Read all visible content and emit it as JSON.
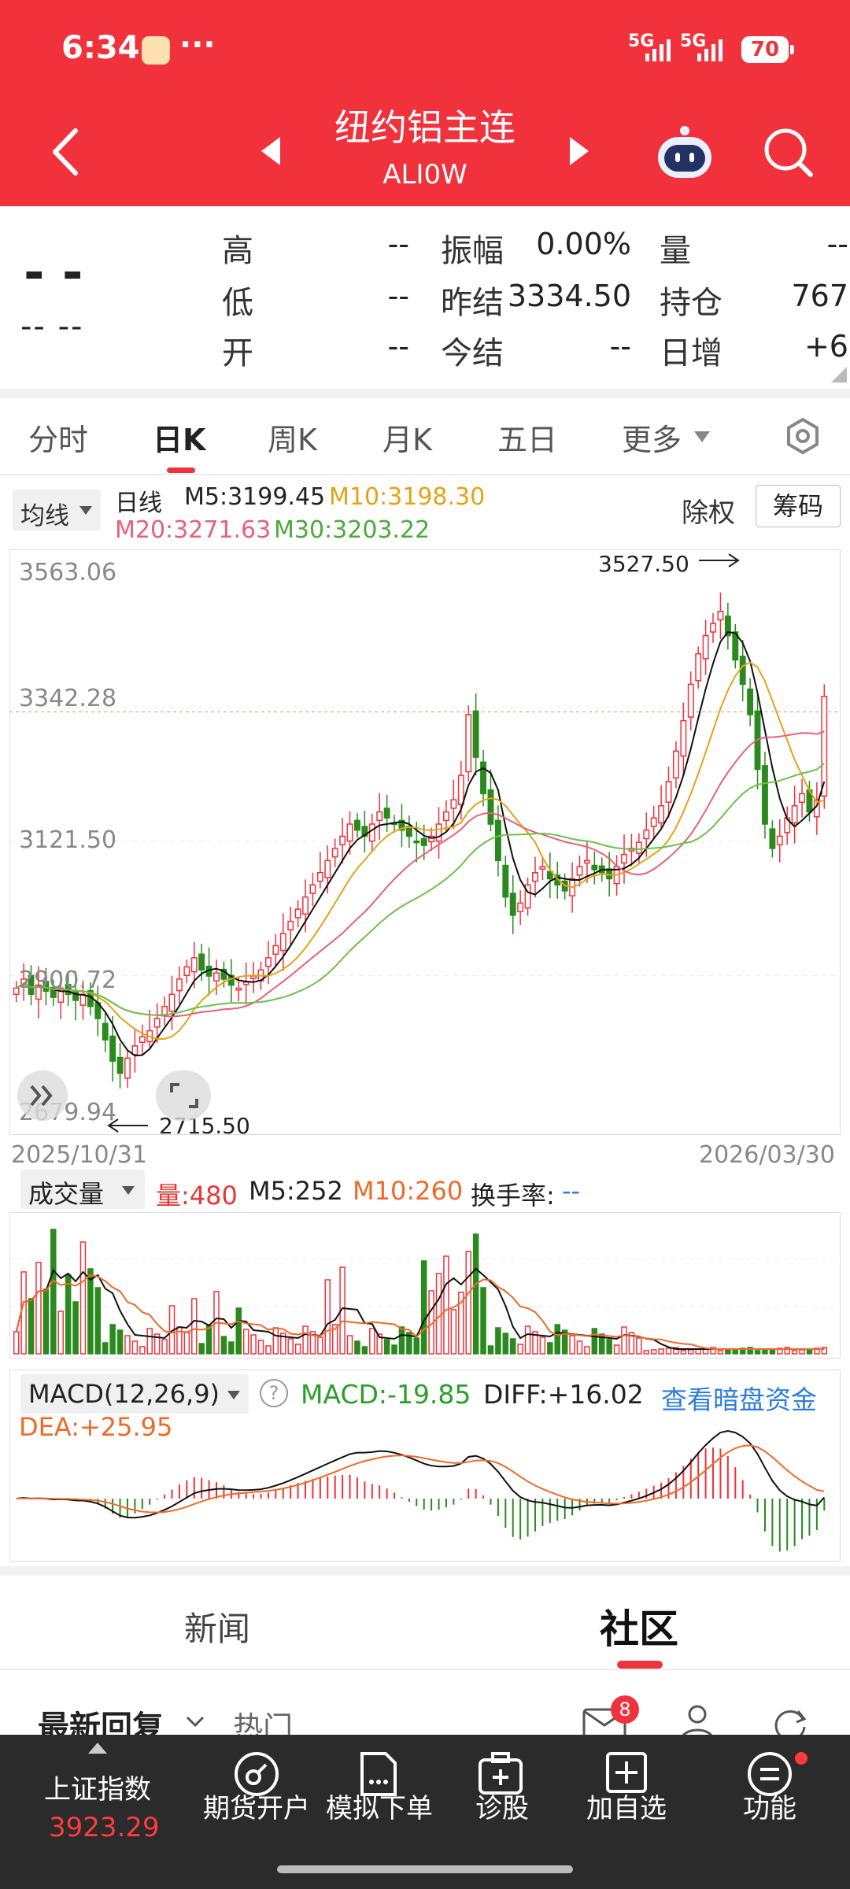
{
  "status_bar": {
    "time": "6:34",
    "more": "···",
    "net1": "5G",
    "net2": "5G",
    "battery": "70"
  },
  "header": {
    "back_icon": "back-arrow-icon",
    "prev_icon": "left-triangle-icon",
    "next_icon": "right-triangle-icon",
    "title": "纽约铝主连",
    "code": "ALI0W",
    "bot_icon": "robot-icon",
    "search_icon": "search-icon"
  },
  "quote": {
    "price": "- -",
    "change": "-- --",
    "high_label": "高",
    "high": "--",
    "low_label": "低",
    "low": "--",
    "open_label": "开",
    "open": "--",
    "amp_label": "振幅",
    "amp": "0.00%",
    "prevsettle_label": "昨结",
    "prevsettle": "3334.50",
    "settle_label": "今结",
    "settle": "--",
    "vol_label": "量",
    "vol": "--",
    "oi_label": "持仓",
    "oi": "767",
    "oichg_label": "日增",
    "oichg": "+6"
  },
  "tabs": [
    "分时",
    "日K",
    "周K",
    "月K",
    "五日",
    "更多"
  ],
  "active_tab": "日K",
  "kline": {
    "ma_dropdown": "均线",
    "period": "日线",
    "m5": "M5:3199.45",
    "m10": "M10:3198.30",
    "m20": "M20:3271.63",
    "m30": "M30:3203.22",
    "exright": "除权",
    "chips": "筹码",
    "y_labels": [
      "3563.06",
      "3342.28",
      "3121.50",
      "2900.72",
      "2679.94"
    ],
    "max_label": "3527.50",
    "min_label": "2715.50",
    "date_start": "2025/10/31",
    "date_end": "2026/03/30"
  },
  "volume": {
    "dropdown": "成交量",
    "vol": "量:480",
    "m5": "M5:252",
    "m10": "M10:260",
    "turnover": "换手率:",
    "turnover_val": "--"
  },
  "macd": {
    "dropdown": "MACD(12,26,9)",
    "help": "?",
    "macd": "MACD:-19.85",
    "diff": "DIFF:+16.02",
    "dea": "DEA:+25.95",
    "link": "查看暗盘资金"
  },
  "news_tabs": {
    "news": "新闻",
    "community": "社区"
  },
  "sub": {
    "latest": "最新回复",
    "hot": "热门",
    "badge": "8"
  },
  "bottom_nav": {
    "index_name": "上证指数",
    "index_value": "3923.29",
    "items": [
      "期货开户",
      "模拟下单",
      "诊股",
      "加自选",
      "功能"
    ]
  },
  "colors": {
    "red": "#f1313b",
    "green": "#2a8a1e",
    "black_ma": "#111111",
    "m10": "#e3a316",
    "m20": "#e8607a",
    "m30": "#6cc24a",
    "macd_link": "#2d7ddb"
  },
  "chart_data": {
    "type": "candlestick",
    "y_ticks": [
      3563.06,
      3342.28,
      3121.5,
      2900.72,
      2679.94
    ],
    "ylim": [
      2679.94,
      3563.06
    ],
    "x_range": [
      "2025/10/31",
      "2026/03/30"
    ],
    "high_marker": 3527.5,
    "low_marker": 2715.5,
    "reference_line": 3334.5,
    "close_series": [
      2880,
      2895,
      2870,
      2885,
      2875,
      2865,
      2880,
      2870,
      2860,
      2870,
      2850,
      2830,
      2795,
      2760,
      2740,
      2765,
      2785,
      2800,
      2810,
      2830,
      2850,
      2870,
      2895,
      2915,
      2930,
      2910,
      2900,
      2905,
      2895,
      2885,
      2880,
      2890,
      2900,
      2910,
      2930,
      2950,
      2970,
      2990,
      3010,
      3030,
      3050,
      3070,
      3090,
      3110,
      3130,
      3150,
      3140,
      3130,
      3150,
      3170,
      3160,
      3150,
      3140,
      3130,
      3120,
      3115,
      3130,
      3150,
      3170,
      3190,
      3230,
      3330,
      3260,
      3200,
      3150,
      3090,
      3030,
      3000,
      3020,
      3050,
      3070,
      3080,
      3060,
      3050,
      3040,
      3060,
      3080,
      3090,
      3075,
      3070,
      3060,
      3080,
      3100,
      3110,
      3120,
      3140,
      3160,
      3180,
      3220,
      3270,
      3320,
      3380,
      3430,
      3460,
      3480,
      3500,
      3460,
      3420,
      3380,
      3330,
      3240,
      3150,
      3110,
      3130,
      3160,
      3180,
      3200,
      3170,
      3190,
      3360
    ]
  }
}
